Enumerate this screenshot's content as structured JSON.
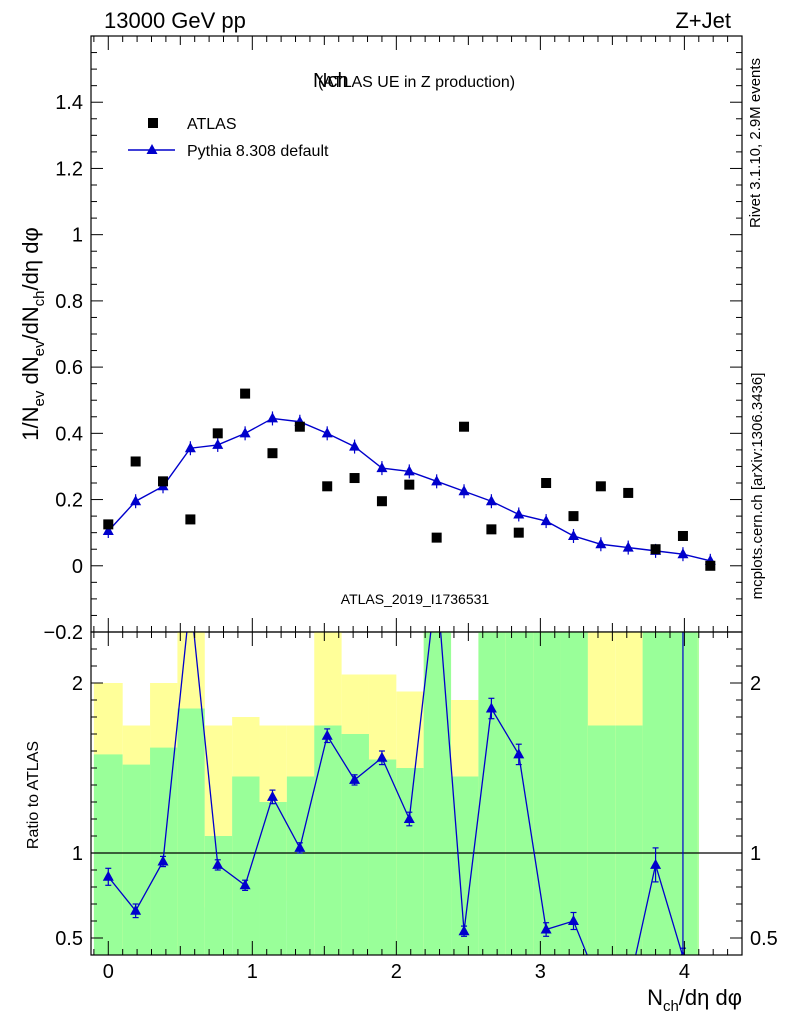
{
  "header": {
    "left": "13000 GeV pp",
    "right": "Z+Jet"
  },
  "side_texts": {
    "rivet": "Rivet 3.1.10,  2.9M events",
    "mcplots": "mcplots.cern.ch [arXiv:1306.3436]"
  },
  "colors": {
    "mc": "#0000cc",
    "data": "#000000",
    "band_inner": "#99ff99",
    "band_outer": "#ffff99"
  },
  "chart_data": [
    {
      "type": "scatter",
      "title": "Nch",
      "subtitle": "(ATLAS UE in Z production)",
      "ylabel": "1/N_ev dN_ev/dN_ch/dη dφ",
      "watermark": "ATLAS_2019_I1736531",
      "xlim": [
        -0.12,
        4.4
      ],
      "ylim": [
        -0.2,
        1.6
      ],
      "yticks": [
        "−0.2",
        "0",
        "0.2",
        "0.4",
        "0.6",
        "0.8",
        "1",
        "1.2",
        "1.4"
      ],
      "legend_position": "top-left",
      "series": [
        {
          "name": "ATLAS",
          "marker": "square",
          "x": [
            0.0,
            0.19,
            0.38,
            0.57,
            0.76,
            0.95,
            1.14,
            1.33,
            1.52,
            1.71,
            1.9,
            2.09,
            2.28,
            2.47,
            2.66,
            2.85,
            3.04,
            3.23,
            3.42,
            3.61,
            3.8,
            3.99,
            4.18
          ],
          "y": [
            0.125,
            0.315,
            0.255,
            0.14,
            0.4,
            0.52,
            0.34,
            0.42,
            0.24,
            0.265,
            0.195,
            0.245,
            0.085,
            0.42,
            0.11,
            0.1,
            0.25,
            0.15,
            0.24,
            0.22,
            0.05,
            0.09,
            0.0
          ]
        },
        {
          "name": "Pythia 8.308 default",
          "marker": "triangle",
          "x": [
            0.0,
            0.19,
            0.38,
            0.57,
            0.76,
            0.95,
            1.14,
            1.33,
            1.52,
            1.71,
            1.9,
            2.09,
            2.28,
            2.47,
            2.66,
            2.85,
            3.04,
            3.23,
            3.42,
            3.61,
            3.8,
            3.99,
            4.18
          ],
          "y": [
            0.105,
            0.195,
            0.24,
            0.355,
            0.365,
            0.4,
            0.445,
            0.435,
            0.4,
            0.36,
            0.295,
            0.285,
            0.255,
            0.225,
            0.195,
            0.155,
            0.135,
            0.09,
            0.065,
            0.055,
            0.045,
            0.035,
            0.015
          ]
        }
      ]
    },
    {
      "type": "line",
      "ylabel": "Ratio to ATLAS",
      "xlabel": "N_ch/dη dφ",
      "xlim": [
        -0.12,
        4.4
      ],
      "ylim": [
        0.4,
        2.3
      ],
      "xticks": [
        "0",
        "1",
        "2",
        "3",
        "4"
      ],
      "yticks": [
        "0.5",
        "1",
        "2"
      ],
      "reference_line": 1,
      "bands": {
        "edges": [
          -0.1,
          0.1,
          0.29,
          0.48,
          0.67,
          0.86,
          1.05,
          1.24,
          1.43,
          1.62,
          1.81,
          2.0,
          2.19,
          2.38,
          2.57,
          2.76,
          2.95,
          3.14,
          3.33,
          3.52,
          3.71,
          3.9,
          4.09,
          4.1
        ],
        "inner_low": [
          0.4,
          0.4,
          0.4,
          0.4,
          0.4,
          0.4,
          0.4,
          0.4,
          0.4,
          0.4,
          0.4,
          0.4,
          0.4,
          0.4,
          0.4,
          0.4,
          0.4,
          0.4,
          0.4,
          0.4,
          0.4,
          0.4,
          0.4
        ],
        "inner_high": [
          1.58,
          1.52,
          1.62,
          1.85,
          1.1,
          1.45,
          1.3,
          1.45,
          1.75,
          1.7,
          1.55,
          1.5,
          2.3,
          1.45,
          2.3,
          2.3,
          2.3,
          2.3,
          1.75,
          1.75,
          2.3,
          2.3,
          2.3
        ],
        "outer_low": [
          0.48,
          0.4,
          0.42,
          0.4,
          0.68,
          0.68,
          0.72,
          0.78,
          0.4,
          0.4,
          0.4,
          0.55,
          0.4,
          0.68,
          0.4,
          0.4,
          0.4,
          0.4,
          0.4,
          0.4,
          0.4,
          0.4,
          0.4
        ],
        "outer_high": [
          2.0,
          1.75,
          2.0,
          2.3,
          1.75,
          1.8,
          1.75,
          1.75,
          2.3,
          2.05,
          2.05,
          1.95,
          2.3,
          1.9,
          2.3,
          2.3,
          2.3,
          2.3,
          2.3,
          2.3,
          2.3,
          2.3,
          2.3
        ]
      },
      "series": [
        {
          "name": "Pythia 8.308 default",
          "x": [
            0.0,
            0.19,
            0.38,
            0.57,
            0.76,
            0.95,
            1.14,
            1.33,
            1.52,
            1.71,
            1.9,
            2.09,
            2.28,
            2.47,
            2.66,
            2.85,
            3.04,
            3.23,
            3.42,
            3.61,
            3.8,
            3.99
          ],
          "y": [
            0.86,
            0.66,
            0.95,
            2.5,
            0.93,
            0.81,
            1.33,
            1.03,
            1.69,
            1.43,
            1.56,
            1.2,
            2.6,
            0.54,
            1.85,
            1.58,
            0.55,
            0.6,
            0.2,
            0.2,
            0.93,
            0.39
          ],
          "err": [
            0.05,
            0.04,
            0.03,
            0.03,
            0.03,
            0.03,
            0.04,
            0.03,
            0.04,
            0.03,
            0.04,
            0.04,
            0.1,
            0.03,
            0.06,
            0.06,
            0.04,
            0.05,
            0,
            0,
            0.1,
            0.05
          ]
        }
      ]
    }
  ]
}
